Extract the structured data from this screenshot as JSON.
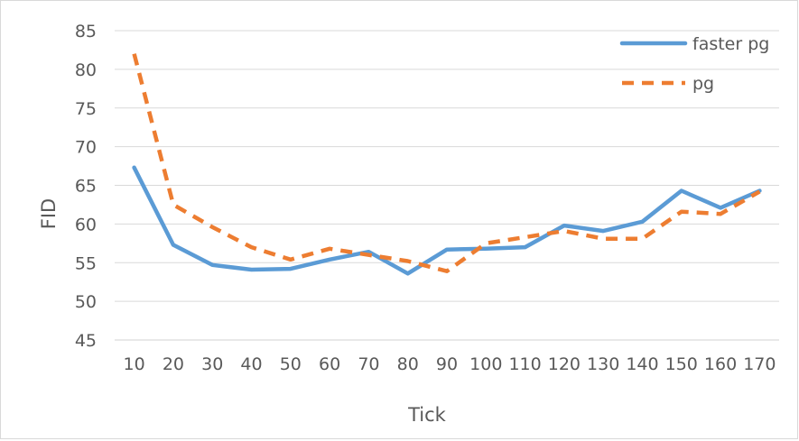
{
  "chart_data": {
    "type": "line",
    "categories": [
      "10",
      "20",
      "30",
      "40",
      "50",
      "60",
      "70",
      "80",
      "90",
      "100",
      "110",
      "120",
      "130",
      "140",
      "150",
      "160",
      "170"
    ],
    "series": [
      {
        "name": "faster pg",
        "color": "#5b9bd5",
        "dash": "solid",
        "values": [
          67.3,
          57.3,
          54.7,
          54.1,
          54.2,
          55.4,
          56.4,
          53.6,
          56.7,
          56.8,
          57.0,
          59.8,
          59.1,
          60.3,
          64.3,
          62.1,
          64.3
        ]
      },
      {
        "name": "pg",
        "color": "#ed7d31",
        "dash": "dashed",
        "values": [
          82.0,
          62.5,
          59.6,
          57.0,
          55.4,
          56.8,
          56.0,
          55.2,
          53.9,
          57.5,
          58.3,
          59.1,
          58.1,
          58.1,
          61.6,
          61.3,
          64.2
        ]
      }
    ],
    "xlabel": "Tick",
    "ylabel": "FID",
    "ylim": [
      45,
      85
    ],
    "yticks": [
      "45",
      "50",
      "55",
      "60",
      "65",
      "70",
      "75",
      "80",
      "85"
    ],
    "grid": true,
    "legend_position": "top-right"
  }
}
